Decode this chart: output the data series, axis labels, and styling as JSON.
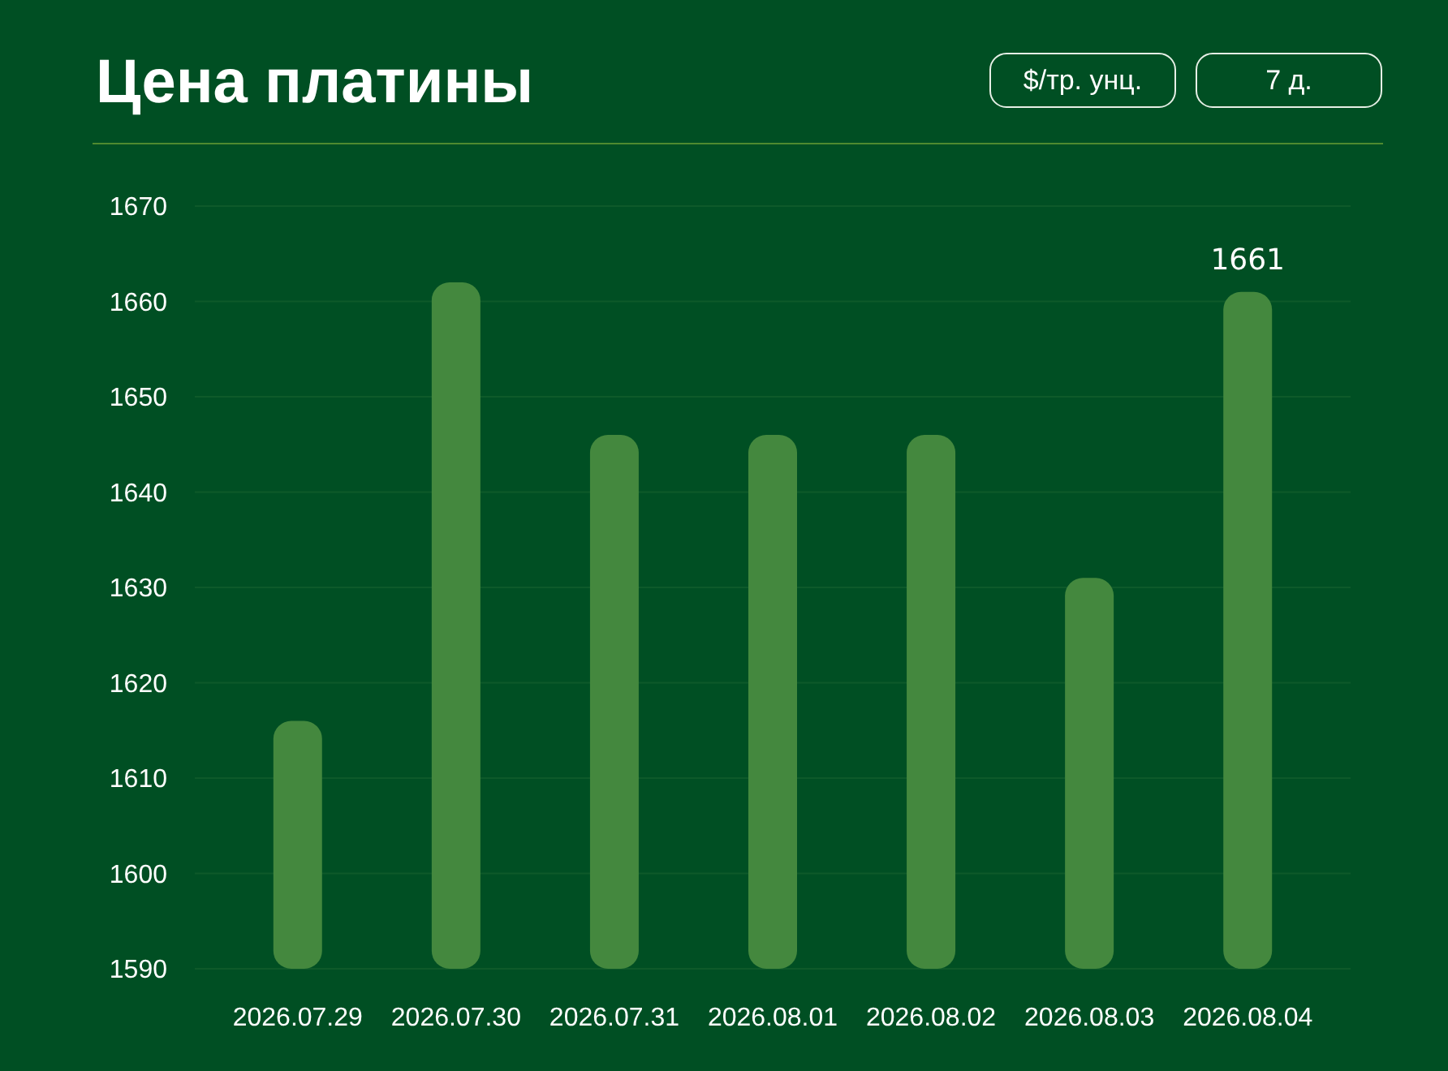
{
  "chart_data": {
    "type": "bar",
    "title": "Цена платины",
    "annotations": [
      "$/тр. унц.",
      "7 д."
    ],
    "categories": [
      "2026.07.29",
      "2026.07.30",
      "2026.07.31",
      "2026.08.01",
      "2026.08.02",
      "2026.08.03",
      "2026.08.04"
    ],
    "values": [
      1616,
      1662,
      1646,
      1646,
      1646,
      1631,
      1661
    ],
    "value_labels": [
      null,
      null,
      null,
      null,
      null,
      null,
      "1661"
    ],
    "color": "#44883e",
    "ylim": [
      1590,
      1670
    ],
    "yticks": [
      1590,
      1600,
      1610,
      1620,
      1630,
      1640,
      1650,
      1660,
      1670
    ],
    "grid": "y"
  }
}
